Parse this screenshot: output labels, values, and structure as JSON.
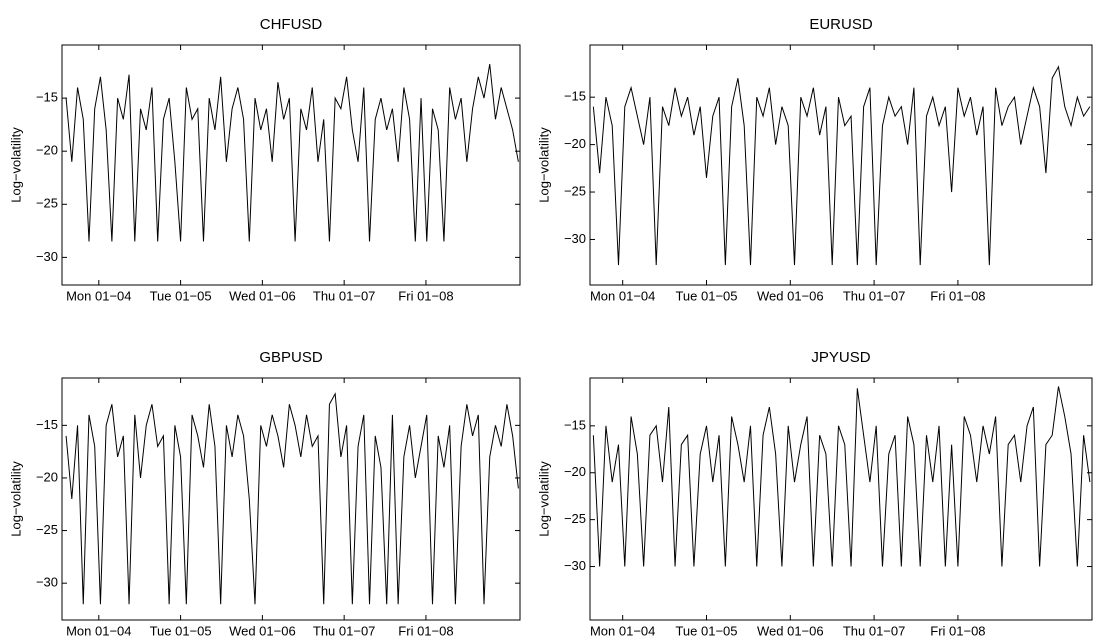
{
  "chart_data": [
    {
      "type": "line",
      "title": "CHFUSD",
      "ylabel": "Log−volatility",
      "color": "#000000",
      "x": [
        -0.4,
        -0.33,
        -0.26,
        -0.19,
        -0.12,
        -0.05,
        0.02,
        0.09,
        0.16,
        0.23,
        0.3,
        0.37,
        0.44,
        0.51,
        0.58,
        0.65,
        0.72,
        0.79,
        0.86,
        0.93,
        1,
        1.07,
        1.14,
        1.21,
        1.28,
        1.35,
        1.42,
        1.49,
        1.56,
        1.63,
        1.7,
        1.77,
        1.84,
        1.91,
        1.98,
        2.05,
        2.12,
        2.19,
        2.26,
        2.33,
        2.4,
        2.47,
        2.54,
        2.61,
        2.68,
        2.75,
        2.82,
        2.89,
        2.96,
        3.03,
        3.1,
        3.17,
        3.24,
        3.31,
        3.38,
        3.45,
        3.52,
        3.59,
        3.66,
        3.73,
        3.8,
        3.87,
        3.94,
        4.01,
        4.08,
        4.15,
        4.22,
        4.29,
        4.36,
        4.43,
        4.5,
        4.57,
        4.64,
        4.71,
        4.78,
        4.85,
        4.92,
        4.99,
        5.06,
        5.13
      ],
      "values": [
        -15,
        -21,
        -14,
        -17,
        -28.5,
        -16,
        -13,
        -18,
        -28.5,
        -15,
        -17,
        -12.8,
        -28.5,
        -16,
        -18,
        -14,
        -28.5,
        -17,
        -15,
        -21,
        -28.5,
        -14,
        -17,
        -16,
        -28.5,
        -15,
        -18,
        -13,
        -21,
        -16,
        -14,
        -17,
        -28.5,
        -15,
        -18,
        -16,
        -21,
        -13.5,
        -17,
        -15,
        -28.5,
        -16,
        -18,
        -14,
        -21,
        -17,
        -28.5,
        -15,
        -16,
        -13,
        -18,
        -21,
        -14,
        -28.5,
        -17,
        -15,
        -18,
        -16,
        -21,
        -14,
        -17,
        -28.5,
        -15,
        -28.5,
        -16,
        -18,
        -28.5,
        -14,
        -17,
        -15,
        -21,
        -16,
        -13,
        -15,
        -11.8,
        -17,
        -14,
        -16,
        -18,
        -21
      ],
      "xlim": [
        -0.45,
        5.15
      ],
      "ylim": [
        -32.6,
        -10
      ],
      "xticks": [
        {
          "value": 0,
          "label": "Mon 01−04"
        },
        {
          "value": 1,
          "label": "Tue 01−05"
        },
        {
          "value": 2,
          "label": "Wed 01−06"
        },
        {
          "value": 3,
          "label": "Thu 01−07"
        },
        {
          "value": 4,
          "label": "Fri 01−08"
        }
      ],
      "yticks": [
        {
          "value": -15,
          "label": "−15"
        },
        {
          "value": -20,
          "label": "−20"
        },
        {
          "value": -25,
          "label": "−25"
        },
        {
          "value": -30,
          "label": "−30"
        }
      ]
    },
    {
      "type": "line",
      "title": "EURUSD",
      "ylabel": "Log−volatility",
      "color": "#000000",
      "x": [
        -0.35,
        -0.275,
        -0.2,
        -0.125,
        -0.05,
        0.025,
        0.1,
        0.175,
        0.25,
        0.325,
        0.4,
        0.475,
        0.55,
        0.625,
        0.7,
        0.775,
        0.85,
        0.925,
        1,
        1.075,
        1.15,
        1.225,
        1.3,
        1.375,
        1.45,
        1.525,
        1.6,
        1.675,
        1.75,
        1.825,
        1.9,
        1.975,
        2.05,
        2.125,
        2.2,
        2.275,
        2.35,
        2.425,
        2.5,
        2.575,
        2.65,
        2.725,
        2.8,
        2.875,
        2.95,
        3.025,
        3.1,
        3.175,
        3.25,
        3.325,
        3.4,
        3.475,
        3.55,
        3.625,
        3.7,
        3.775,
        3.85,
        3.925,
        4,
        4.075,
        4.15,
        4.225,
        4.3,
        4.375,
        4.45,
        4.525,
        4.6,
        4.675,
        4.75,
        4.825,
        4.9,
        4.975,
        5.05,
        5.125,
        5.2,
        5.275,
        5.35,
        5.425,
        5.5,
        5.575
      ],
      "values": [
        -16,
        -23,
        -15,
        -18,
        -32.7,
        -16,
        -14,
        -17,
        -20,
        -15,
        -32.7,
        -16,
        -18,
        -14,
        -17,
        -15,
        -19,
        -16,
        -23.5,
        -17,
        -15,
        -32.7,
        -16,
        -13,
        -18,
        -32.7,
        -15,
        -17,
        -14,
        -20,
        -16,
        -18,
        -32.7,
        -15,
        -17,
        -14,
        -19,
        -16,
        -32.7,
        -15,
        -18,
        -17,
        -32.7,
        -16,
        -14,
        -32.7,
        -18,
        -15,
        -17,
        -16,
        -20,
        -14,
        -32.7,
        -17,
        -15,
        -18,
        -16,
        -25,
        -14,
        -17,
        -15,
        -19,
        -16,
        -32.7,
        -14,
        -18,
        -16,
        -15,
        -20,
        -17,
        -14,
        -16,
        -23,
        -13,
        -11.8,
        -16,
        -18,
        -15,
        -17,
        -16
      ],
      "xlim": [
        -0.39,
        5.6
      ],
      "ylim": [
        -34.8,
        -9.5
      ],
      "xticks": [
        {
          "value": 0,
          "label": "Mon 01−04"
        },
        {
          "value": 1,
          "label": "Tue 01−05"
        },
        {
          "value": 2,
          "label": "Wed 01−06"
        },
        {
          "value": 3,
          "label": "Thu 01−07"
        },
        {
          "value": 4,
          "label": "Fri 01−08"
        }
      ],
      "yticks": [
        {
          "value": -15,
          "label": "−15"
        },
        {
          "value": -20,
          "label": "−20"
        },
        {
          "value": -25,
          "label": "−25"
        },
        {
          "value": -30,
          "label": "−30"
        }
      ]
    },
    {
      "type": "line",
      "title": "GBPUSD",
      "ylabel": "Log−volatility",
      "color": "#000000",
      "x": [
        -0.4,
        -0.33,
        -0.26,
        -0.19,
        -0.12,
        -0.05,
        0.02,
        0.09,
        0.16,
        0.23,
        0.3,
        0.37,
        0.44,
        0.51,
        0.58,
        0.65,
        0.72,
        0.79,
        0.86,
        0.93,
        1,
        1.07,
        1.14,
        1.21,
        1.28,
        1.35,
        1.42,
        1.49,
        1.56,
        1.63,
        1.7,
        1.77,
        1.84,
        1.91,
        1.98,
        2.05,
        2.12,
        2.19,
        2.26,
        2.33,
        2.4,
        2.47,
        2.54,
        2.61,
        2.68,
        2.75,
        2.82,
        2.89,
        2.96,
        3.03,
        3.1,
        3.17,
        3.24,
        3.31,
        3.38,
        3.45,
        3.52,
        3.59,
        3.66,
        3.73,
        3.8,
        3.87,
        3.94,
        4.01,
        4.08,
        4.15,
        4.22,
        4.29,
        4.36,
        4.43,
        4.5,
        4.57,
        4.64,
        4.71,
        4.78,
        4.85,
        4.92,
        4.99,
        5.06,
        5.13
      ],
      "values": [
        -16,
        -22,
        -15,
        -32,
        -14,
        -17,
        -32,
        -15,
        -13,
        -18,
        -16,
        -32,
        -14,
        -20,
        -15,
        -13,
        -17,
        -16,
        -32,
        -15,
        -18,
        -32,
        -14,
        -16,
        -19,
        -13,
        -17,
        -32,
        -15,
        -18,
        -14,
        -16,
        -22,
        -32,
        -15,
        -17,
        -14,
        -16,
        -19,
        -13,
        -15,
        -18,
        -14,
        -17,
        -16,
        -32,
        -13,
        -12,
        -18,
        -15,
        -32,
        -17,
        -14,
        -32,
        -16,
        -19,
        -32,
        -14,
        -32,
        -18,
        -15,
        -20,
        -17,
        -14,
        -32,
        -16,
        -19,
        -15,
        -32,
        -17,
        -13,
        -16,
        -14,
        -32,
        -18,
        -15,
        -17,
        -13,
        -16,
        -21
      ],
      "xlim": [
        -0.45,
        5.15
      ],
      "ylim": [
        -33.5,
        -10.5
      ],
      "xticks": [
        {
          "value": 0,
          "label": "Mon 01−04"
        },
        {
          "value": 1,
          "label": "Tue 01−05"
        },
        {
          "value": 2,
          "label": "Wed 01−06"
        },
        {
          "value": 3,
          "label": "Thu 01−07"
        },
        {
          "value": 4,
          "label": "Fri 01−08"
        }
      ],
      "yticks": [
        {
          "value": -15,
          "label": "−15"
        },
        {
          "value": -20,
          "label": "−20"
        },
        {
          "value": -25,
          "label": "−25"
        },
        {
          "value": -30,
          "label": "−30"
        }
      ]
    },
    {
      "type": "line",
      "title": "JPYUSD",
      "ylabel": "Log−volatility",
      "color": "#000000",
      "x": [
        -0.35,
        -0.275,
        -0.2,
        -0.125,
        -0.05,
        0.025,
        0.1,
        0.175,
        0.25,
        0.325,
        0.4,
        0.475,
        0.55,
        0.625,
        0.7,
        0.775,
        0.85,
        0.925,
        1,
        1.075,
        1.15,
        1.225,
        1.3,
        1.375,
        1.45,
        1.525,
        1.6,
        1.675,
        1.75,
        1.825,
        1.9,
        1.975,
        2.05,
        2.125,
        2.2,
        2.275,
        2.35,
        2.425,
        2.5,
        2.575,
        2.65,
        2.725,
        2.8,
        2.875,
        2.95,
        3.025,
        3.1,
        3.175,
        3.25,
        3.325,
        3.4,
        3.475,
        3.55,
        3.625,
        3.7,
        3.775,
        3.85,
        3.925,
        4,
        4.075,
        4.15,
        4.225,
        4.3,
        4.375,
        4.45,
        4.525,
        4.6,
        4.675,
        4.75,
        4.825,
        4.9,
        4.975,
        5.05,
        5.125,
        5.2,
        5.275,
        5.35,
        5.425,
        5.5,
        5.575
      ],
      "values": [
        -16,
        -30,
        -15,
        -21,
        -17,
        -30,
        -14,
        -18,
        -30,
        -16,
        -15,
        -21,
        -13,
        -30,
        -17,
        -16,
        -30,
        -18,
        -15,
        -21,
        -16,
        -30,
        -14,
        -17,
        -21,
        -15,
        -30,
        -16,
        -13,
        -18,
        -30,
        -15,
        -21,
        -17,
        -14,
        -30,
        -16,
        -18,
        -30,
        -15,
        -17,
        -30,
        -11,
        -16,
        -21,
        -15,
        -30,
        -18,
        -16,
        -30,
        -14,
        -17,
        -30,
        -16,
        -21,
        -15,
        -30,
        -17,
        -30,
        -14,
        -16,
        -21,
        -15,
        -18,
        -14,
        -30,
        -17,
        -16,
        -21,
        -15,
        -13,
        -30,
        -17,
        -16,
        -10.8,
        -14,
        -18,
        -30,
        -16,
        -21
      ],
      "xlim": [
        -0.39,
        5.6
      ],
      "ylim": [
        -35.7,
        -9.9
      ],
      "xticks": [
        {
          "value": 0,
          "label": "Mon 01−04"
        },
        {
          "value": 1,
          "label": "Tue 01−05"
        },
        {
          "value": 2,
          "label": "Wed 01−06"
        },
        {
          "value": 3,
          "label": "Thu 01−07"
        },
        {
          "value": 4,
          "label": "Fri 01−08"
        }
      ],
      "yticks": [
        {
          "value": -15,
          "label": "−15"
        },
        {
          "value": -20,
          "label": "−20"
        },
        {
          "value": -25,
          "label": "−25"
        },
        {
          "value": -30,
          "label": "−30"
        }
      ]
    }
  ]
}
